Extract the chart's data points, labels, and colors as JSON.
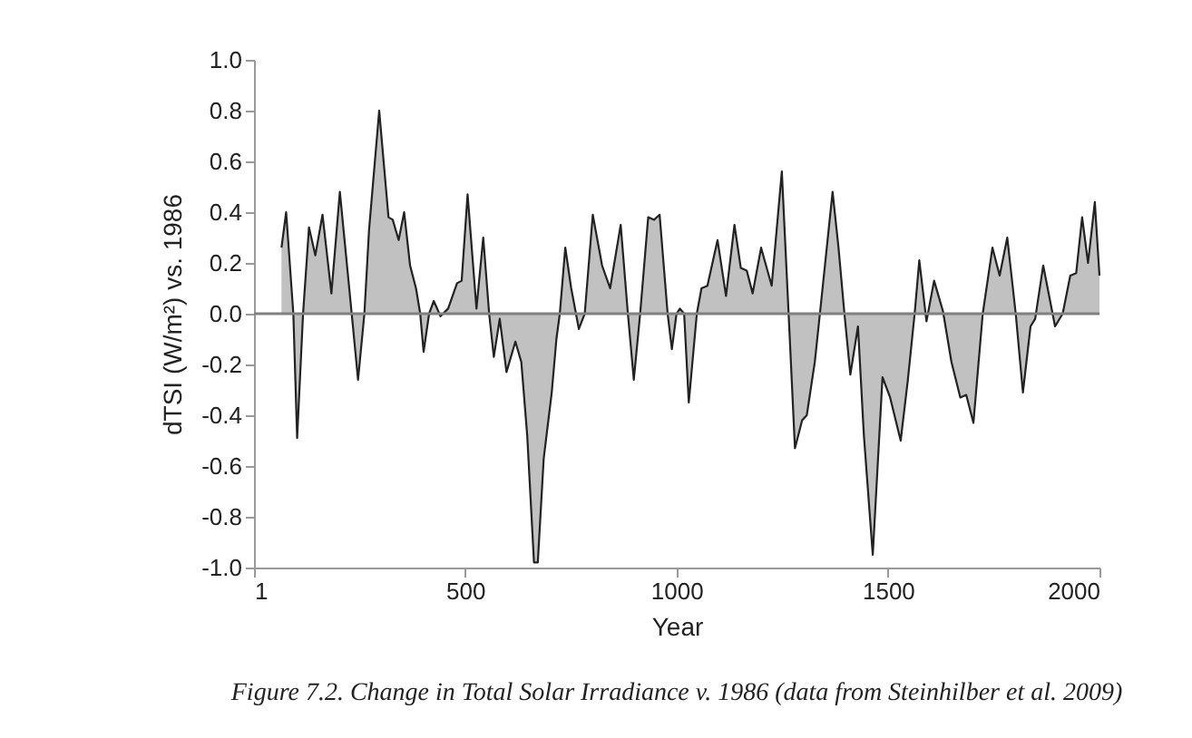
{
  "chart_data": {
    "type": "area",
    "xlabel": "Year",
    "ylabel": "dTSI (W/m²) vs. 1986",
    "annotations": [
      "Figure 7.2. Change in Total Solar Irradiance v. 1986 (data from Steinhilber et al. 2009)"
    ],
    "x": [
      66,
      77,
      94,
      103,
      117,
      131,
      146,
      163,
      184,
      204,
      232,
      247,
      262,
      273,
      297,
      319,
      329,
      343,
      356,
      370,
      384,
      394,
      402,
      415,
      426,
      442,
      460,
      481,
      492,
      506,
      527,
      543,
      557,
      568,
      582,
      598,
      619,
      633,
      647,
      663,
      672,
      686,
      705,
      716,
      724,
      737,
      751,
      769,
      783,
      802,
      824,
      843,
      868,
      885,
      899,
      914,
      933,
      947,
      960,
      979,
      989,
      1000,
      1008,
      1018,
      1029,
      1048,
      1059,
      1073,
      1097,
      1117,
      1137,
      1152,
      1166,
      1180,
      1200,
      1225,
      1249,
      1265,
      1280,
      1297,
      1308,
      1327,
      1339,
      1369,
      1383,
      1397,
      1411,
      1429,
      1443,
      1464,
      1487,
      1505,
      1530,
      1547,
      1563,
      1574,
      1591,
      1609,
      1630,
      1650,
      1671,
      1685,
      1702,
      1724,
      1747,
      1764,
      1782,
      1802,
      1819,
      1837,
      1848,
      1867,
      1895,
      1913,
      1931,
      1945,
      1959,
      1973,
      1989,
      2000
    ],
    "values": [
      0.26,
      0.4,
      0,
      -0.49,
      0,
      0.34,
      0.23,
      0.39,
      0.08,
      0.48,
      0,
      -0.26,
      0,
      0.33,
      0.8,
      0.38,
      0.37,
      0.29,
      0.4,
      0.19,
      0.1,
      0,
      -0.15,
      0,
      0.05,
      -0.01,
      0.02,
      0.12,
      0.13,
      0.47,
      0.02,
      0.3,
      0,
      -0.17,
      -0.02,
      -0.23,
      -0.11,
      -0.19,
      -0.48,
      -0.98,
      -0.98,
      -0.57,
      -0.31,
      -0.1,
      0,
      0.26,
      0.1,
      -0.06,
      0,
      0.39,
      0.19,
      0.1,
      0.35,
      0,
      -0.26,
      0,
      0.38,
      0.37,
      0.39,
      0,
      -0.14,
      0,
      0.02,
      0,
      -0.35,
      0,
      0.1,
      0.11,
      0.29,
      0.07,
      0.35,
      0.18,
      0.17,
      0.08,
      0.26,
      0.11,
      0.56,
      0,
      -0.53,
      -0.42,
      -0.4,
      -0.19,
      0,
      0.48,
      0.26,
      0,
      -0.24,
      -0.05,
      -0.48,
      -0.95,
      -0.25,
      -0.33,
      -0.5,
      -0.26,
      0,
      0.21,
      -0.03,
      0.13,
      0.01,
      -0.19,
      -0.33,
      -0.32,
      -0.43,
      0,
      0.26,
      0.15,
      0.3,
      0,
      -0.31,
      -0.05,
      -0.02,
      0.19,
      -0.05,
      0,
      0.15,
      0.16,
      0.38,
      0.2,
      0.44,
      0.15
    ],
    "color": "#a6a6a6",
    "xlim": [
      1,
      2000
    ],
    "xticks": [
      1,
      500,
      1000,
      1500,
      2000
    ],
    "ylim": [
      -1,
      1
    ],
    "yticks": [
      {
        "value": -1,
        "label": "-1.0"
      },
      {
        "value": -0.8,
        "label": "-0.8"
      },
      {
        "value": -0.6,
        "label": "-0.6"
      },
      {
        "value": -0.4,
        "label": "-0.4"
      },
      {
        "value": -0.2,
        "label": "-0.2"
      },
      {
        "value": 0,
        "label": "0.0"
      },
      {
        "value": 0.2,
        "label": "0.2"
      },
      {
        "value": 0.4,
        "label": "0.4"
      },
      {
        "value": 0.6,
        "label": "0.6"
      },
      {
        "value": 0.8,
        "label": "0.8"
      },
      {
        "value": 1,
        "label": "1.0"
      }
    ],
    "ref_lines": [
      {
        "axis": "y",
        "value": 0,
        "color": "#808080"
      }
    ]
  }
}
